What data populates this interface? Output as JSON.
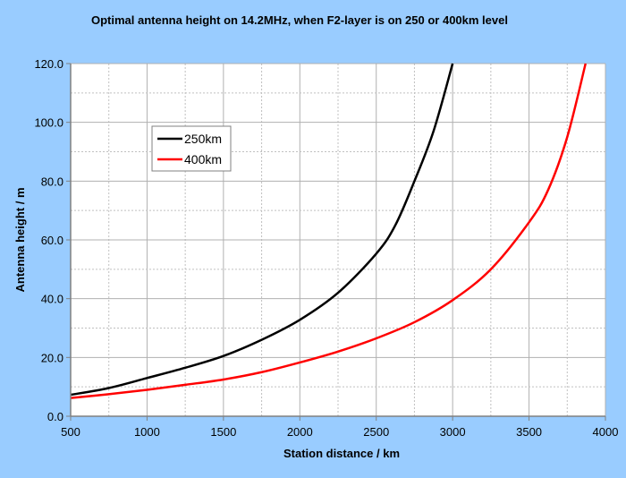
{
  "chart_data": {
    "type": "line",
    "title": "Optimal antenna height on 14.2MHz, when F2-layer is on 250 or 400km level",
    "xlabel": "Station distance  / km",
    "ylabel": "Antenna  height  / m",
    "xlim": [
      500,
      4000
    ],
    "ylim": [
      0,
      120
    ],
    "xticks": [
      "500",
      "1000",
      "1500",
      "2000",
      "2500",
      "3000",
      "3500",
      "4000"
    ],
    "yticks": [
      "0.0",
      "20.0",
      "40.0",
      "60.0",
      "80.0",
      "100.0",
      "120.0"
    ],
    "grid": true,
    "legend_position": "upper-left",
    "series": [
      {
        "name": "250km",
        "color": "#000000",
        "x": [
          500,
          750,
          1000,
          1250,
          1500,
          1750,
          2000,
          2250,
          2500,
          2625,
          2750,
          2875,
          3000
        ],
        "y": [
          7.3,
          9.6,
          13,
          16.5,
          20.5,
          26,
          32.8,
          42,
          55.3,
          65,
          80,
          97,
          120
        ]
      },
      {
        "name": "400km",
        "color": "#ff0000",
        "x": [
          500,
          750,
          1000,
          1250,
          1500,
          1750,
          2000,
          2250,
          2500,
          2750,
          3000,
          3250,
          3500,
          3625,
          3750,
          3870
        ],
        "y": [
          6.2,
          7.5,
          9,
          10.7,
          12.5,
          15,
          18.3,
          22,
          26.5,
          32,
          39.5,
          50,
          66,
          77,
          95,
          120
        ]
      }
    ]
  }
}
